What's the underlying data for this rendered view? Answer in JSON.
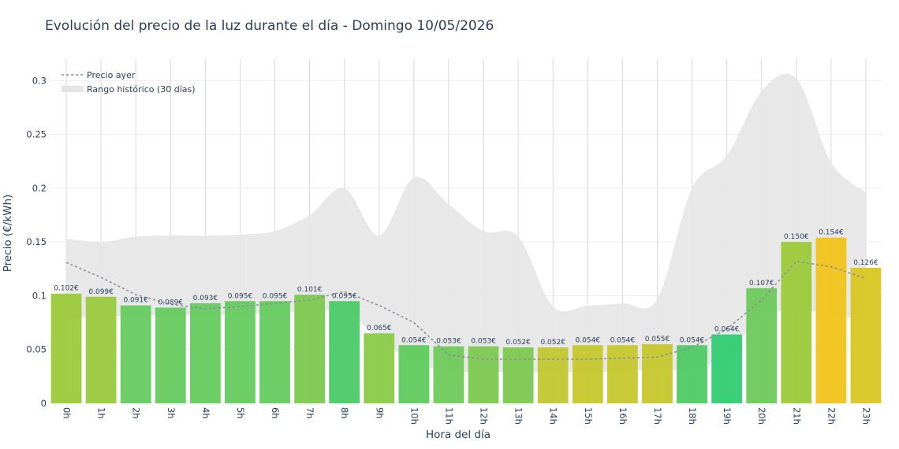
{
  "chart_data": {
    "type": "bar",
    "title": "Evolución del precio de la luz durante el día - Domingo 10/05/2026",
    "xlabel": "Hora del día",
    "ylabel": "Precio (€/kWh)",
    "ylim": [
      0,
      0.32
    ],
    "yticks": [
      0,
      0.05,
      0.1,
      0.15,
      0.2,
      0.25,
      0.3
    ],
    "ytick_labels": [
      "0",
      "0.05",
      "0.1",
      "0.15",
      "0.2",
      "0.25",
      "0.3"
    ],
    "grid": true,
    "legend_position": "top-left",
    "categories": [
      "0h",
      "1h",
      "2h",
      "3h",
      "4h",
      "5h",
      "6h",
      "7h",
      "8h",
      "9h",
      "10h",
      "11h",
      "12h",
      "13h",
      "14h",
      "15h",
      "16h",
      "17h",
      "18h",
      "19h",
      "20h",
      "21h",
      "22h",
      "23h"
    ],
    "values": [
      0.102,
      0.099,
      0.091,
      0.089,
      0.093,
      0.095,
      0.095,
      0.101,
      0.095,
      0.065,
      0.054,
      0.053,
      0.053,
      0.052,
      0.052,
      0.054,
      0.054,
      0.055,
      0.054,
      0.064,
      0.107,
      0.15,
      0.154,
      0.126
    ],
    "value_labels": [
      "0.102€",
      "0.099€",
      "0.091€",
      "0.089€",
      "0.093€",
      "0.095€",
      "0.095€",
      "0.101€",
      "0.095€",
      "0.065€",
      "0.054€",
      "0.053€",
      "0.053€",
      "0.052€",
      "0.052€",
      "0.054€",
      "0.054€",
      "0.055€",
      "0.054€",
      "0.064€",
      "0.107€",
      "0.150€",
      "0.154€",
      "0.126€"
    ],
    "bar_colors": [
      "#9ac936",
      "#98c93a",
      "#62c95a",
      "#62c95a",
      "#62c95a",
      "#62c95a",
      "#62c95a",
      "#7ac84c",
      "#46c962",
      "#88c943",
      "#5ec95a",
      "#6cc955",
      "#7ac84c",
      "#7ac84c",
      "#bfc62a",
      "#c4c629",
      "#c4c629",
      "#c4c629",
      "#4cc960",
      "#2ccb6f",
      "#6ac856",
      "#9ac936",
      "#f0c214",
      "#d8c61e"
    ],
    "series": [
      {
        "name": "Precio ayer",
        "style": "dotted-line",
        "color": "#8c8f99",
        "values": [
          0.131,
          0.117,
          0.101,
          0.092,
          0.088,
          0.09,
          0.093,
          0.096,
          0.104,
          0.091,
          0.075,
          0.045,
          0.041,
          0.041,
          0.041,
          0.041,
          0.042,
          0.043,
          0.052,
          0.069,
          0.096,
          0.132,
          0.127,
          0.116
        ]
      },
      {
        "name": "Rango histórico (30 días)",
        "style": "band",
        "color": "#e5e5e5",
        "upper": [
          0.153,
          0.15,
          0.155,
          0.156,
          0.156,
          0.157,
          0.16,
          0.175,
          0.2,
          0.156,
          0.21,
          0.185,
          0.16,
          0.155,
          0.09,
          0.091,
          0.093,
          0.097,
          0.2,
          0.23,
          0.29,
          0.302,
          0.224,
          0.196
        ],
        "lower": [
          0.081,
          0.08,
          0.082,
          0.082,
          0.082,
          0.083,
          0.084,
          0.085,
          0.085,
          0.06,
          0.038,
          0.03,
          0.029,
          0.029,
          0.029,
          0.029,
          0.03,
          0.031,
          0.032,
          0.045,
          0.08,
          0.086,
          0.083,
          0.076
        ]
      }
    ]
  }
}
